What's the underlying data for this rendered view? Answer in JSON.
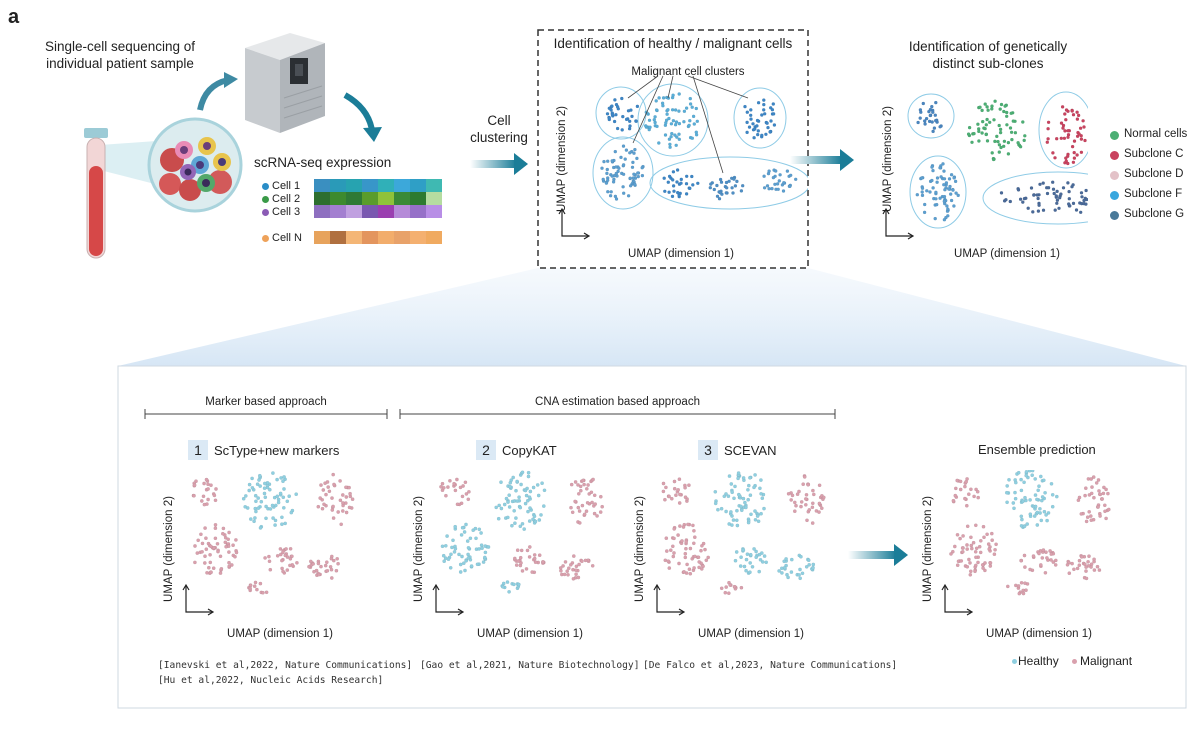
{
  "panel_label": "a",
  "top": {
    "sample_title": "Single-cell sequencing of\nindividual patient sample",
    "expression_title": "scRNA-seq expression",
    "cells": [
      "Cell 1",
      "Cell 2",
      "Cell 3"
    ],
    "cell_n": "Cell N",
    "cell_colors": [
      "#2a8dc7",
      "#3a9a48",
      "#8b5bb5",
      "#eea25a"
    ],
    "arrow_label": "Cell\nclustering",
    "healthy_malignant_title": "Identification of healthy / malignant cells",
    "cluster_label": "Malignant cell clusters",
    "subclone_title": "Identification of genetically\ndistinct sub-clones",
    "x_axis": "UMAP (dimension 1)",
    "y_axis": "UMAP (dimension 2)",
    "legend": [
      {
        "label": "Normal cells",
        "color": "#4caf74"
      },
      {
        "label": "Subclone C",
        "color": "#c9435f"
      },
      {
        "label": "Subclone D",
        "color": "#e3c2c8"
      },
      {
        "label": "Subclone F",
        "color": "#3aa7de"
      },
      {
        "label": "Subclone G",
        "color": "#4a7a99"
      }
    ]
  },
  "bottom": {
    "marker_approach": "Marker based approach",
    "cna_approach": "CNA estimation based approach",
    "methods": [
      {
        "num": "1",
        "name": "ScType+new markers"
      },
      {
        "num": "2",
        "name": "CopyKAT"
      },
      {
        "num": "3",
        "name": "SCEVAN"
      }
    ],
    "ensemble": "Ensemble prediction",
    "x_axis": "UMAP (dimension 1)",
    "y_axis": "UMAP (dimension 2)",
    "refs": [
      "[Ianevski et al,2022, Nature Communications]",
      "[Hu et al,2022, Nucleic Acids Research]",
      "[Gao et al,2021, Nature Biotechnology]",
      "[De Falco et al,2023, Nature Communications]"
    ],
    "legend_healthy": "Healthy",
    "legend_malignant": "Malignant",
    "healthy_color": "#8fcfe0",
    "malignant_color": "#d9a0ad"
  }
}
